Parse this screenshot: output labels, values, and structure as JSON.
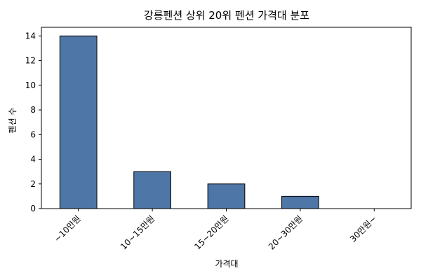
{
  "chart_data": {
    "type": "bar",
    "title": "강릉펜션 상위 20위 펜션 가격대 분포",
    "xlabel": "가격대",
    "ylabel": "펜션 수",
    "categories": [
      "~10만원",
      "10~15만원",
      "15~20만원",
      "20~30만원",
      "30만원~"
    ],
    "values": [
      14,
      3,
      2,
      1,
      0
    ],
    "ylim": [
      0,
      14.7
    ],
    "yticks": [
      "0",
      "2",
      "4",
      "6",
      "8",
      "10",
      "12",
      "14"
    ],
    "grid": false,
    "bar_color": "#4e76a6"
  }
}
